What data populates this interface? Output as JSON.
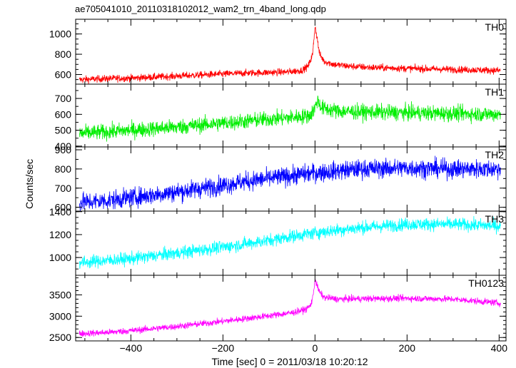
{
  "chart_data": {
    "type": "line",
    "title": "ae705041010_20110318102012_wam2_trn_4band_long.qdp",
    "xlabel": "Time [sec] 0 = 2011/03/18 10:20:12",
    "ylabel": "Counts/sec",
    "xlim": [
      -520,
      415
    ],
    "xticks": [
      -400,
      -200,
      0,
      200,
      400
    ],
    "xtick_labels": [
      "−400",
      "−200",
      "0",
      "200",
      "400"
    ],
    "grid": false,
    "panels": [
      {
        "name": "TH0",
        "color": "#ff0000",
        "ylim": [
          505,
          1145
        ],
        "yticks": [
          600,
          800,
          1000
        ],
        "yminor": [
          500,
          550,
          600,
          650,
          700,
          750,
          800,
          850,
          900,
          950,
          1000,
          1050,
          1100
        ],
        "series": [
          {
            "name": "TH0",
            "x": [
              -510,
              -450,
              -400,
              -350,
              -300,
              -250,
              -200,
              -150,
              -100,
              -60,
              -30,
              -15,
              -5,
              0,
              5,
              10,
              20,
              40,
              80,
              120,
              200,
              300,
              400
            ],
            "values": [
              550,
              560,
              565,
              575,
              585,
              595,
              605,
              615,
              620,
              625,
              640,
              680,
              800,
              1080,
              950,
              800,
              730,
              700,
              680,
              670,
              660,
              650,
              640
            ],
            "noise": 25
          }
        ]
      },
      {
        "name": "TH1",
        "color": "#00ee00",
        "ylim": [
          395,
          790
        ],
        "yticks": [
          400,
          500,
          600,
          700
        ],
        "yminor": [
          400,
          450,
          500,
          550,
          600,
          650,
          700,
          750
        ],
        "series": [
          {
            "name": "TH1",
            "x": [
              -510,
              -450,
              -400,
              -300,
              -200,
              -100,
              -30,
              -10,
              0,
              5,
              15,
              50,
              100,
              200,
              300,
              400
            ],
            "values": [
              480,
              490,
              500,
              520,
              545,
              570,
              585,
              595,
              640,
              690,
              640,
              620,
              615,
              610,
              605,
              600
            ],
            "noise": 35
          }
        ]
      },
      {
        "name": "TH2",
        "color": "#0000ff",
        "ylim": [
          580,
          915
        ],
        "yticks": [
          600,
          700,
          800,
          900
        ],
        "yminor": [
          600,
          650,
          700,
          750,
          800,
          850,
          900
        ],
        "series": [
          {
            "name": "TH2",
            "x": [
              -510,
              -450,
              -400,
              -300,
              -200,
              -150,
              -100,
              -50,
              0,
              50,
              100,
              200,
              300,
              400
            ],
            "values": [
              625,
              635,
              650,
              680,
              715,
              735,
              750,
              765,
              780,
              790,
              800,
              805,
              800,
              800
            ],
            "noise": 35
          }
        ]
      },
      {
        "name": "TH3",
        "color": "#00ffff",
        "ylim": [
          845,
          1405
        ],
        "yticks": [
          1000,
          1200,
          1400
        ],
        "yminor": [
          900,
          950,
          1000,
          1050,
          1100,
          1150,
          1200,
          1250,
          1300,
          1350,
          1400
        ],
        "series": [
          {
            "name": "TH3",
            "x": [
              -510,
              -450,
              -400,
              -300,
              -200,
              -100,
              -50,
              0,
              50,
              100,
              200,
              300,
              400
            ],
            "values": [
              955,
              975,
              990,
              1040,
              1090,
              1150,
              1185,
              1215,
              1240,
              1260,
              1290,
              1290,
              1275
            ],
            "noise": 40
          }
        ]
      },
      {
        "name": "TH0123",
        "color": "#ff00ff",
        "ylim": [
          2420,
          3960
        ],
        "yticks": [
          2500,
          3000,
          3500
        ],
        "yminor": [
          2500,
          2600,
          2700,
          2800,
          2900,
          3000,
          3100,
          3200,
          3300,
          3400,
          3500,
          3600,
          3700,
          3800,
          3900
        ],
        "series": [
          {
            "name": "TH0123",
            "x": [
              -510,
              -450,
              -400,
              -300,
              -200,
              -100,
              -50,
              -20,
              -10,
              -5,
              0,
              5,
              10,
              20,
              50,
              100,
              200,
              300,
              400
            ],
            "values": [
              2590,
              2620,
              2660,
              2760,
              2880,
              3010,
              3080,
              3160,
              3250,
              3420,
              3860,
              3700,
              3560,
              3440,
              3400,
              3410,
              3420,
              3400,
              3310
            ],
            "noise": 55
          }
        ]
      }
    ]
  }
}
